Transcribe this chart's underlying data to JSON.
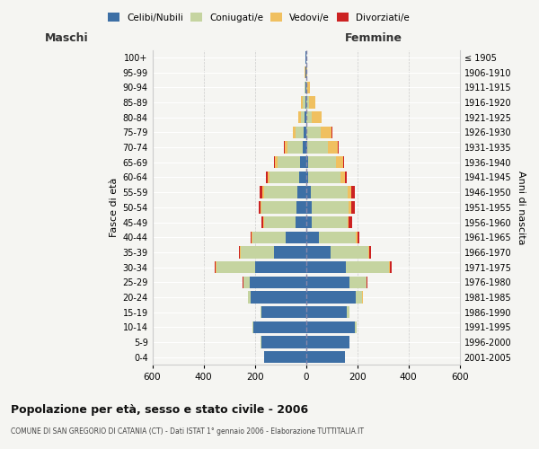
{
  "age_groups": [
    "0-4",
    "5-9",
    "10-14",
    "15-19",
    "20-24",
    "25-29",
    "30-34",
    "35-39",
    "40-44",
    "45-49",
    "50-54",
    "55-59",
    "60-64",
    "65-69",
    "70-74",
    "75-79",
    "80-84",
    "85-89",
    "90-94",
    "95-99",
    "100+"
  ],
  "birth_years": [
    "2001-2005",
    "1996-2000",
    "1991-1995",
    "1986-1990",
    "1981-1985",
    "1976-1980",
    "1971-1975",
    "1966-1970",
    "1961-1965",
    "1956-1960",
    "1951-1955",
    "1946-1950",
    "1941-1945",
    "1936-1940",
    "1931-1935",
    "1926-1930",
    "1921-1925",
    "1916-1920",
    "1911-1915",
    "1906-1910",
    "≤ 1905"
  ],
  "colors": {
    "celibe": "#3d6fa5",
    "coniugato": "#c5d4a0",
    "vedovo": "#f0c060",
    "divorziato": "#cc2222"
  },
  "maschi": {
    "celibe": [
      165,
      175,
      205,
      175,
      215,
      220,
      200,
      125,
      80,
      42,
      38,
      35,
      28,
      22,
      14,
      8,
      4,
      3,
      1,
      2,
      2
    ],
    "coniugato": [
      0,
      2,
      4,
      2,
      10,
      25,
      150,
      130,
      130,
      120,
      135,
      130,
      115,
      90,
      60,
      32,
      16,
      8,
      3,
      0,
      0
    ],
    "vedovo": [
      0,
      0,
      0,
      0,
      0,
      0,
      2,
      2,
      2,
      4,
      4,
      5,
      5,
      8,
      10,
      12,
      10,
      8,
      3,
      2,
      0
    ],
    "divorziato": [
      0,
      0,
      0,
      0,
      0,
      2,
      3,
      5,
      5,
      7,
      8,
      10,
      8,
      4,
      2,
      0,
      0,
      0,
      0,
      0,
      0
    ]
  },
  "femmine": {
    "nubile": [
      152,
      168,
      190,
      160,
      195,
      170,
      155,
      95,
      50,
      22,
      22,
      18,
      10,
      8,
      5,
      3,
      2,
      2,
      1,
      0,
      2
    ],
    "coniugata": [
      0,
      2,
      8,
      8,
      25,
      65,
      170,
      148,
      145,
      140,
      145,
      145,
      125,
      108,
      80,
      55,
      22,
      10,
      3,
      1,
      0
    ],
    "vedova": [
      0,
      0,
      0,
      0,
      2,
      2,
      3,
      4,
      5,
      5,
      8,
      12,
      18,
      30,
      38,
      42,
      38,
      25,
      10,
      3,
      0
    ],
    "divorziata": [
      0,
      0,
      0,
      0,
      0,
      2,
      5,
      8,
      8,
      12,
      15,
      15,
      5,
      4,
      3,
      2,
      0,
      0,
      0,
      0,
      0
    ]
  },
  "xlim": 600,
  "title": "Popolazione per età, sesso e stato civile - 2006",
  "subtitle": "COMUNE DI SAN GREGORIO DI CATANIA (CT) - Dati ISTAT 1° gennaio 2006 - Elaborazione TUTTITALIA.IT",
  "xlabel_left": "Maschi",
  "xlabel_right": "Femmine",
  "ylabel_left": "Fasce di età",
  "ylabel_right": "Anni di nascita",
  "legend_labels": [
    "Celibi/Nubili",
    "Coniugati/e",
    "Vedovi/e",
    "Divorziati/e"
  ],
  "bg_color": "#f5f5f2",
  "grid_color": "#cccccc"
}
